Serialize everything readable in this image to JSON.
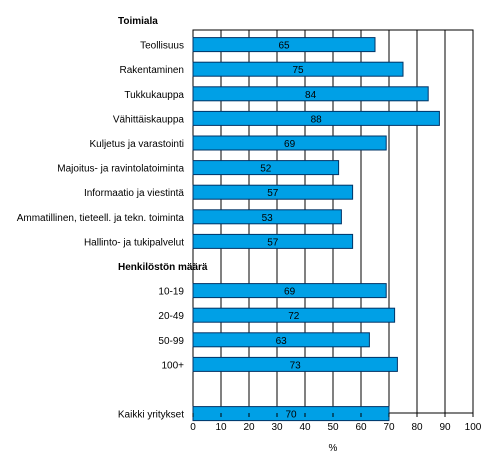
{
  "chart_data": {
    "type": "bar",
    "orientation": "horizontal",
    "rows": [
      {
        "kind": "group",
        "label": "Toimiala"
      },
      {
        "kind": "bar",
        "label": "Teollisuus",
        "value": 65
      },
      {
        "kind": "bar",
        "label": "Rakentaminen",
        "value": 75
      },
      {
        "kind": "bar",
        "label": "Tukkukauppa",
        "value": 84
      },
      {
        "kind": "bar",
        "label": "Vähittäiskauppa",
        "value": 88
      },
      {
        "kind": "bar",
        "label": "Kuljetus ja varastointi",
        "value": 69
      },
      {
        "kind": "bar",
        "label": "Majoitus- ja ravintolatoiminta",
        "value": 52
      },
      {
        "kind": "bar",
        "label": "Informaatio ja viestintä",
        "value": 57
      },
      {
        "kind": "bar",
        "label": "Ammatillinen, tieteell. ja tekn. toiminta",
        "value": 53
      },
      {
        "kind": "bar",
        "label": "Hallinto- ja tukipalvelut",
        "value": 57
      },
      {
        "kind": "group",
        "label": "Henkilöstön määrä"
      },
      {
        "kind": "bar",
        "label": "10-19",
        "value": 69
      },
      {
        "kind": "bar",
        "label": "20-49",
        "value": 72
      },
      {
        "kind": "bar",
        "label": "50-99",
        "value": 63
      },
      {
        "kind": "bar",
        "label": "100+",
        "value": 73
      },
      {
        "kind": "gap",
        "label": ""
      },
      {
        "kind": "bar",
        "label": "Kaikki yritykset",
        "value": 70
      }
    ],
    "xlabel": "%",
    "xlim": [
      0,
      100
    ],
    "xticks": [
      "0",
      "10",
      "20",
      "30",
      "40",
      "50",
      "60",
      "70",
      "80",
      "90",
      "100"
    ],
    "grid": "vertical",
    "bar_color": "#00a0e6",
    "bar_edge_color": "#003366"
  }
}
